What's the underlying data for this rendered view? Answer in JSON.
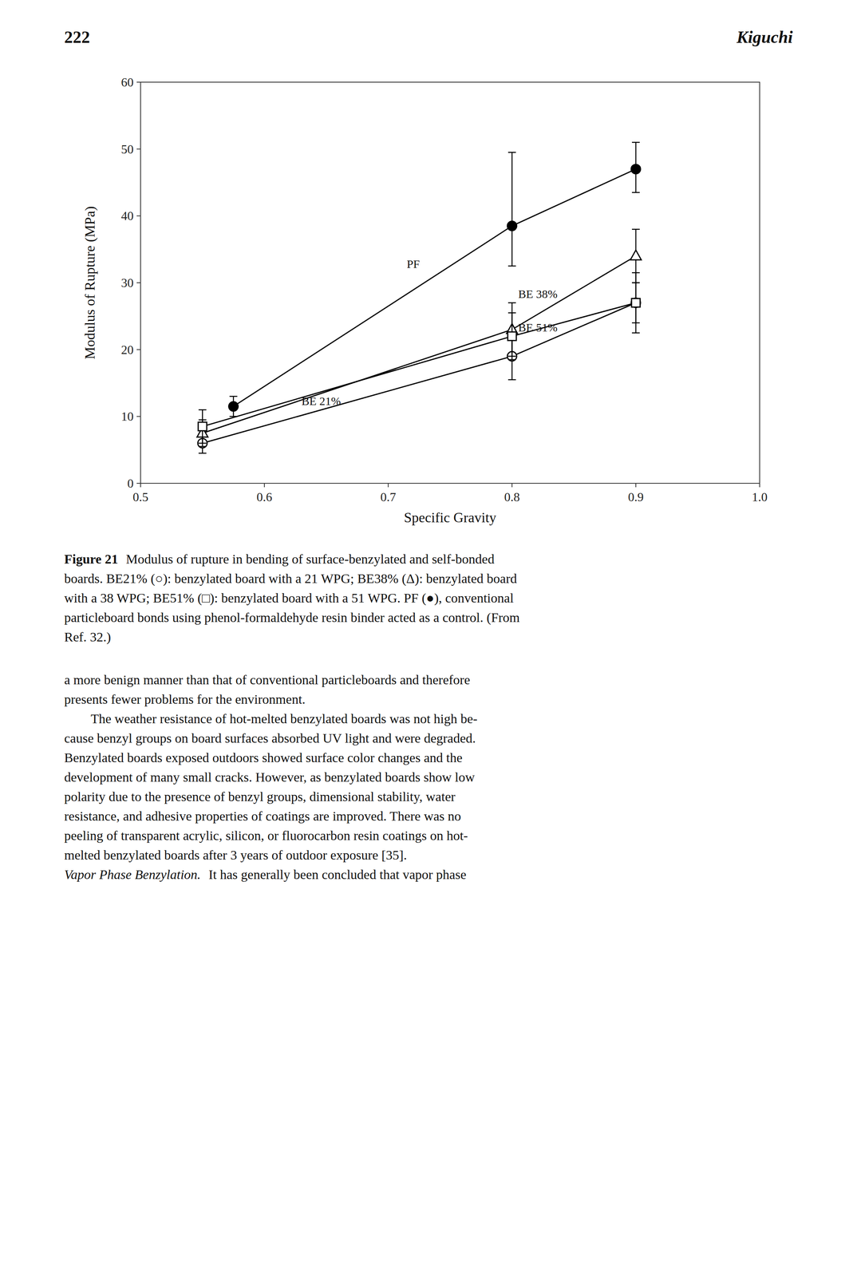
{
  "chart_data": {
    "type": "line",
    "xlabel": "Specific Gravity",
    "ylabel": "Modulus of Rupture (MPa)",
    "xlim": [
      0.5,
      1.0
    ],
    "ylim": [
      0,
      60
    ],
    "xticks": [
      0.5,
      0.6,
      0.7,
      0.8,
      0.9,
      {
        "value": 1.0,
        "label": "1.0"
      }
    ],
    "yticks": [
      0,
      10,
      20,
      30,
      40,
      50,
      60
    ],
    "grid": false,
    "series": [
      {
        "color": "#000000",
        "marker": "open-circle",
        "line_style": "solid",
        "x": [
          0.55,
          0.8,
          0.9
        ],
        "values": [
          6.0,
          19.0,
          27.0
        ],
        "yerr_low": [
          1.5,
          3.5,
          3.0
        ],
        "yerr_high": [
          1.5,
          3.5,
          3.0
        ]
      },
      {
        "color": "#000000",
        "marker": "open-triangle",
        "line_style": "solid",
        "x": [
          0.55,
          0.8,
          0.9
        ],
        "values": [
          7.5,
          23.0,
          34.0
        ],
        "yerr_low": [
          2.0,
          4.0,
          4.0
        ],
        "yerr_high": [
          2.0,
          4.0,
          4.0
        ]
      },
      {
        "color": "#000000",
        "marker": "open-square",
        "line_style": "solid",
        "x": [
          0.55,
          0.8,
          0.9
        ],
        "values": [
          8.5,
          22.0,
          27.0
        ],
        "yerr_low": [
          2.5,
          3.5,
          4.5
        ],
        "yerr_high": [
          2.5,
          3.5,
          4.5
        ]
      },
      {
        "color": "#000000",
        "marker": "filled-circle",
        "line_style": "solid",
        "x": [
          0.575,
          0.8,
          0.9
        ],
        "values": [
          11.5,
          38.5,
          47.0
        ],
        "yerr_low": [
          1.5,
          6.0,
          3.5
        ],
        "yerr_high": [
          1.5,
          11.0,
          4.0
        ]
      }
    ],
    "annotations": [
      {
        "text": "PF",
        "x": 0.715,
        "y": 32.0
      },
      {
        "text": "BE 38%",
        "x": 0.805,
        "y": 27.5
      },
      {
        "text": "BE 51%",
        "x": 0.805,
        "y": 22.5
      },
      {
        "text": "BE 21%",
        "x": 0.63,
        "y": 11.5
      }
    ]
  },
  "page": {
    "header": [
      "222",
      "Kiguchi"
    ],
    "caption": {
      "label": "Figure 21",
      "lines": [
        "Modulus of rupture in bending of surface-benzylated and self-bonded",
        "boards. BE21% (○): benzylated board with a 21 WPG; BE38% (Δ): benzylated board",
        "with a 38 WPG; BE51% (□): benzylated board with a 51 WPG. PF (●), conventional",
        "particleboard bonds using phenol-formaldehyde resin binder acted as a control. (From",
        "Ref. 32.)"
      ]
    },
    "body": [
      {
        "lines": [
          "a more benign manner than that of conventional particleboards and therefore",
          "presents fewer problems for the environment."
        ]
      },
      {
        "lines": [
          "The weather resistance of hot-melted benzylated boards was not high be-",
          "cause benzyl groups on board surfaces absorbed UV light and were degraded.",
          "Benzylated boards exposed outdoors showed surface color changes and the",
          "development of many small cracks. However, as benzylated boards show low",
          "polarity due to the presence of benzyl groups, dimensional stability, water",
          "resistance, and adhesive properties of coatings are improved. There was no",
          "peeling of transparent acrylic, silicon, or fluorocarbon resin coatings on hot-",
          "melted benzylated boards after 3 years of outdoor exposure [35]."
        ]
      },
      {
        "heading": "Vapor Phase Benzylation.",
        "lines": [
          "It has generally been concluded that vapor phase"
        ]
      }
    ]
  }
}
